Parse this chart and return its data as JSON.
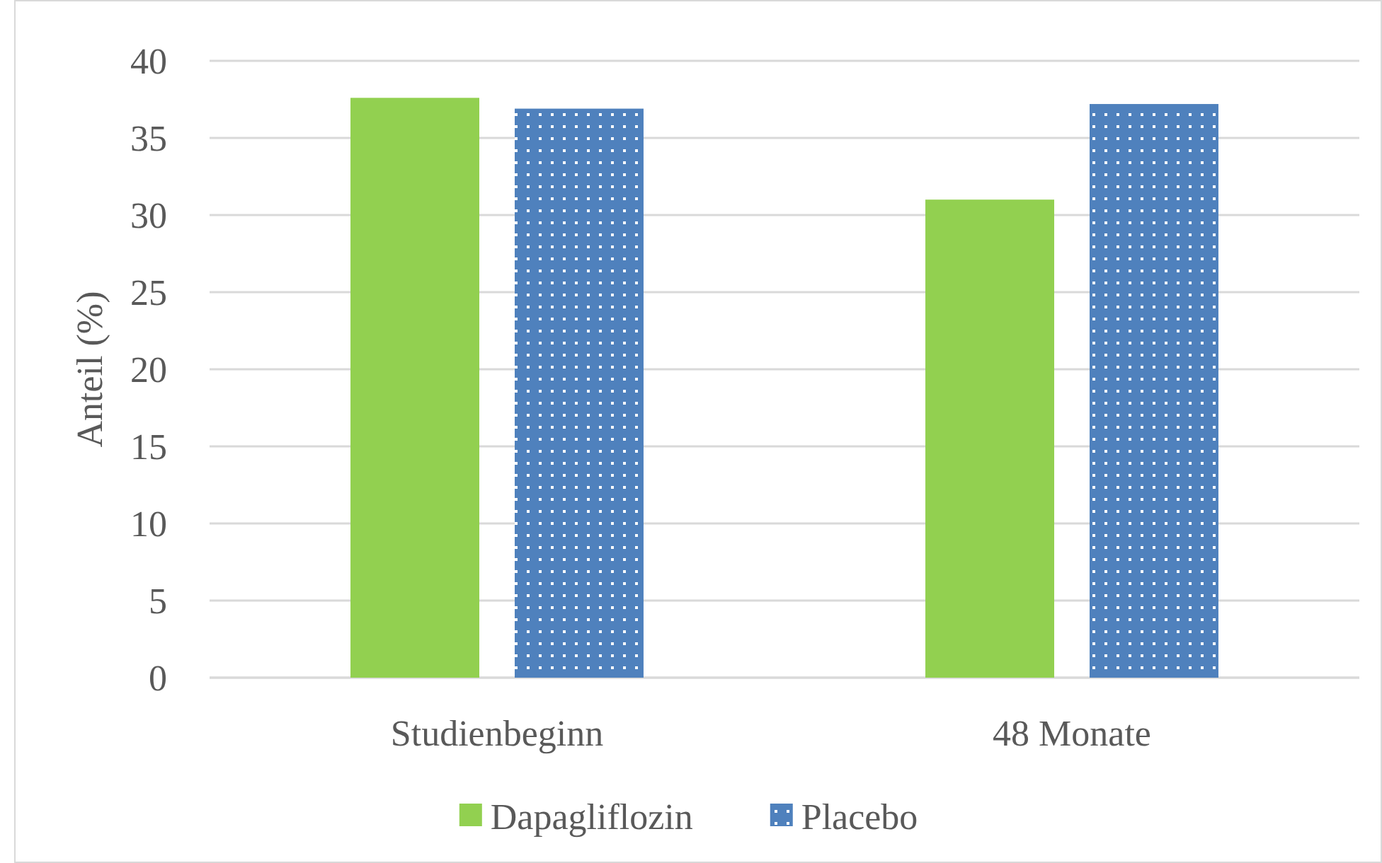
{
  "chart_data": {
    "type": "bar",
    "ylabel": "Anteil (%)",
    "categories": [
      "Studienbeginn",
      "48 Monate"
    ],
    "series": [
      {
        "name": "Dapagliflozin",
        "color": "#92d050",
        "values": [
          37.6,
          31.0
        ]
      },
      {
        "name": "Placebo",
        "color": "#4f81bd",
        "values": [
          36.9,
          37.2
        ]
      }
    ],
    "ylim": [
      0,
      40
    ],
    "yticks": [
      0,
      5,
      10,
      15,
      20,
      25,
      30,
      35,
      40
    ],
    "grid": "y",
    "legend": "bottom"
  }
}
